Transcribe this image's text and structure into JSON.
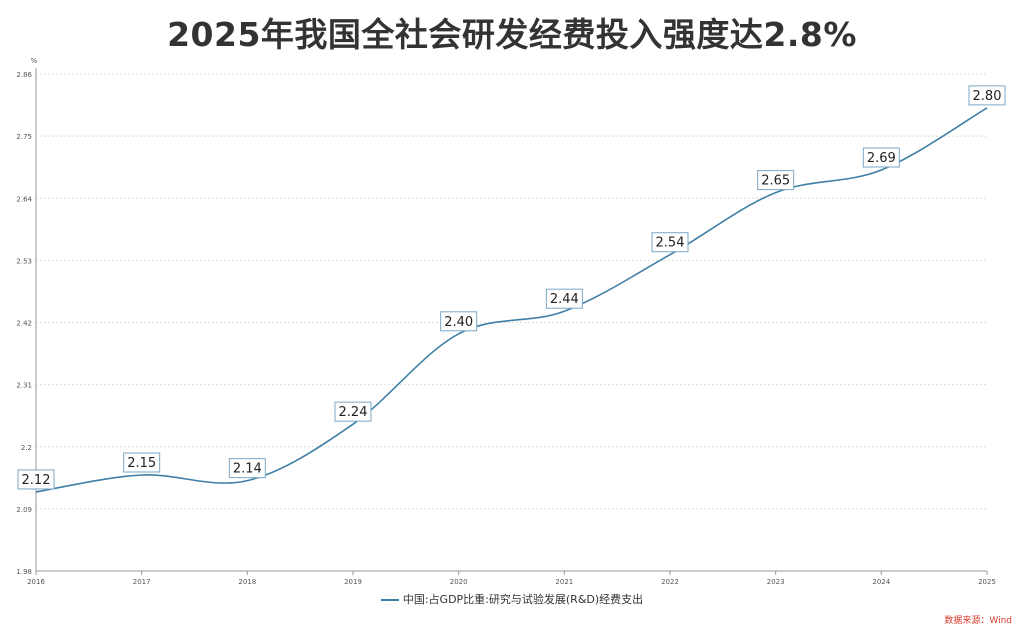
{
  "chart_data": {
    "type": "line",
    "title": "2025年我国全社会研发经费投入强度达2.8%",
    "ylabel": "%",
    "xlabel": "",
    "x": [
      "2016",
      "2017",
      "2018",
      "2019",
      "2020",
      "2021",
      "2022",
      "2023",
      "2024",
      "2025"
    ],
    "series": [
      {
        "name": "中国:占GDP比重:研究与试验发展(R&D)经费支出",
        "values": [
          2.12,
          2.15,
          2.14,
          2.24,
          2.4,
          2.44,
          2.54,
          2.65,
          2.69,
          2.8
        ],
        "labels": [
          "2.12",
          "2.15",
          "2.14",
          "2.24",
          "2.40",
          "2.44",
          "2.54",
          "2.65",
          "2.69",
          "2.80"
        ]
      }
    ],
    "yticks": [
      1.98,
      2.09,
      2.2,
      2.31,
      2.42,
      2.53,
      2.64,
      2.75,
      2.86
    ],
    "ytick_labels": [
      "1.98",
      "2.09",
      "2.2",
      "2.31",
      "2.42",
      "2.53",
      "2.64",
      "2.75",
      "2.86"
    ],
    "ylim": [
      1.98,
      2.86
    ],
    "grid": true,
    "legend": "bottom-center",
    "colors": {
      "line": "#3f7fa6",
      "label_border": "#7aa7c7"
    }
  },
  "source": "数据来源：Wind"
}
